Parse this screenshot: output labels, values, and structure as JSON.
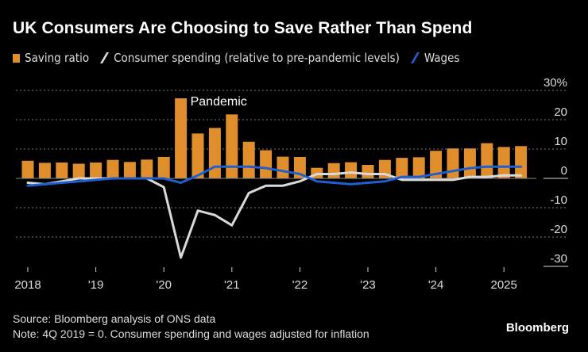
{
  "chart_data": {
    "type": "bar",
    "title": "UK Consumers Are Choosing to Save Rather Than Spend",
    "legend": [
      "Saving ratio",
      "Consumer spending (relative to pre-pandemic levels)",
      "Wages"
    ],
    "legend_position": "top-left",
    "colors": {
      "saving": "#e08e2b",
      "spending": "#d9d9d9",
      "wages": "#1f5fd0"
    },
    "x": [
      "2018 Q1",
      "2018 Q2",
      "2018 Q3",
      "2018 Q4",
      "2019 Q1",
      "2019 Q2",
      "2019 Q3",
      "2019 Q4",
      "2020 Q1",
      "2020 Q2",
      "2020 Q3",
      "2020 Q4",
      "2021 Q1",
      "2021 Q2",
      "2021 Q3",
      "2021 Q4",
      "2022 Q1",
      "2022 Q2",
      "2022 Q3",
      "2022 Q4",
      "2023 Q1",
      "2023 Q2",
      "2023 Q3",
      "2023 Q4",
      "2024 Q1",
      "2024 Q2",
      "2024 Q3",
      "2024 Q4",
      "2025 Q1",
      "2025 Q2"
    ],
    "xticks": [
      {
        "label": "2018",
        "index": 0
      },
      {
        "label": "'19",
        "index": 4
      },
      {
        "label": "'20",
        "index": 8
      },
      {
        "label": "'21",
        "index": 12
      },
      {
        "label": "'22",
        "index": 16
      },
      {
        "label": "'23",
        "index": 20
      },
      {
        "label": "'24",
        "index": 24
      },
      {
        "label": "2025",
        "index": 28
      }
    ],
    "yticks": [
      "30%",
      "20",
      "10",
      "0",
      "-10",
      "-20",
      "-30"
    ],
    "ytick_values": [
      30,
      20,
      10,
      0,
      -10,
      -20,
      -30
    ],
    "ylim": [
      -30,
      30
    ],
    "grid": true,
    "series": [
      {
        "name": "Saving ratio",
        "type": "bar",
        "values": [
          6.0,
          5.3,
          5.4,
          5.0,
          5.4,
          6.3,
          5.6,
          6.4,
          7.3,
          27.3,
          15.3,
          17.2,
          21.8,
          12.5,
          9.6,
          7.4,
          7.3,
          3.6,
          5.2,
          5.5,
          4.6,
          6.3,
          7.0,
          7.2,
          9.4,
          10.2,
          10.2,
          12.0,
          10.7,
          11.0
        ]
      },
      {
        "name": "Consumer spending (relative to pre-pandemic levels)",
        "type": "line",
        "values": [
          -1.5,
          -2,
          -1,
          0,
          0,
          0,
          0,
          0,
          -3,
          -27,
          -11,
          -12.5,
          -16,
          -5,
          -2.5,
          -2.5,
          -1,
          1.5,
          1.5,
          2,
          1.5,
          1.5,
          -0.5,
          -0.5,
          -0.5,
          -0.5,
          0.5,
          0.5,
          1,
          1
        ]
      },
      {
        "name": "Wages",
        "type": "line",
        "values": [
          -2.5,
          -2,
          -1.5,
          -1,
          -0.5,
          0,
          0,
          0,
          0,
          -1.5,
          1,
          4,
          4,
          4,
          3.5,
          2.5,
          1.5,
          -1,
          -1.5,
          -2,
          -1.5,
          -1,
          0.5,
          0.5,
          1.5,
          2.5,
          3.5,
          4,
          4,
          4
        ]
      }
    ],
    "annotations": [
      {
        "text": "Pandemic",
        "index": 9
      }
    ],
    "source": "Source: Bloomberg analysis of ONS data",
    "note": "Note: 4Q 2019 = 0. Consumer spending and wages adjusted for inflation",
    "brand": "Bloomberg"
  }
}
